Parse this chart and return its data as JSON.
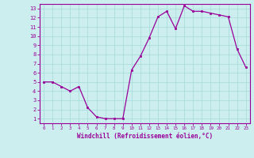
{
  "x": [
    0,
    1,
    2,
    3,
    4,
    5,
    6,
    7,
    8,
    9,
    10,
    11,
    12,
    13,
    14,
    15,
    16,
    17,
    18,
    19,
    20,
    21,
    22,
    23
  ],
  "y": [
    5.0,
    5.0,
    4.5,
    4.0,
    4.5,
    2.2,
    1.2,
    1.0,
    1.0,
    1.0,
    6.3,
    7.8,
    9.8,
    12.1,
    12.7,
    10.8,
    13.3,
    12.7,
    12.7,
    12.5,
    12.3,
    12.1,
    8.6,
    6.6
  ],
  "x_ticks": [
    0,
    1,
    2,
    3,
    4,
    5,
    6,
    7,
    8,
    9,
    10,
    11,
    12,
    13,
    14,
    15,
    16,
    17,
    18,
    19,
    20,
    21,
    22,
    23
  ],
  "y_ticks": [
    1,
    2,
    3,
    4,
    5,
    6,
    7,
    8,
    9,
    10,
    11,
    12,
    13
  ],
  "ylim": [
    0.5,
    13.5
  ],
  "xlim": [
    -0.5,
    23.5
  ],
  "xlabel": "Windchill (Refroidissement éolien,°C)",
  "line_color": "#990099",
  "marker_color": "#990099",
  "bg_color": "#cceeee",
  "grid_color": "#aadddd",
  "tick_label_color": "#990099",
  "xlabel_color": "#990099"
}
